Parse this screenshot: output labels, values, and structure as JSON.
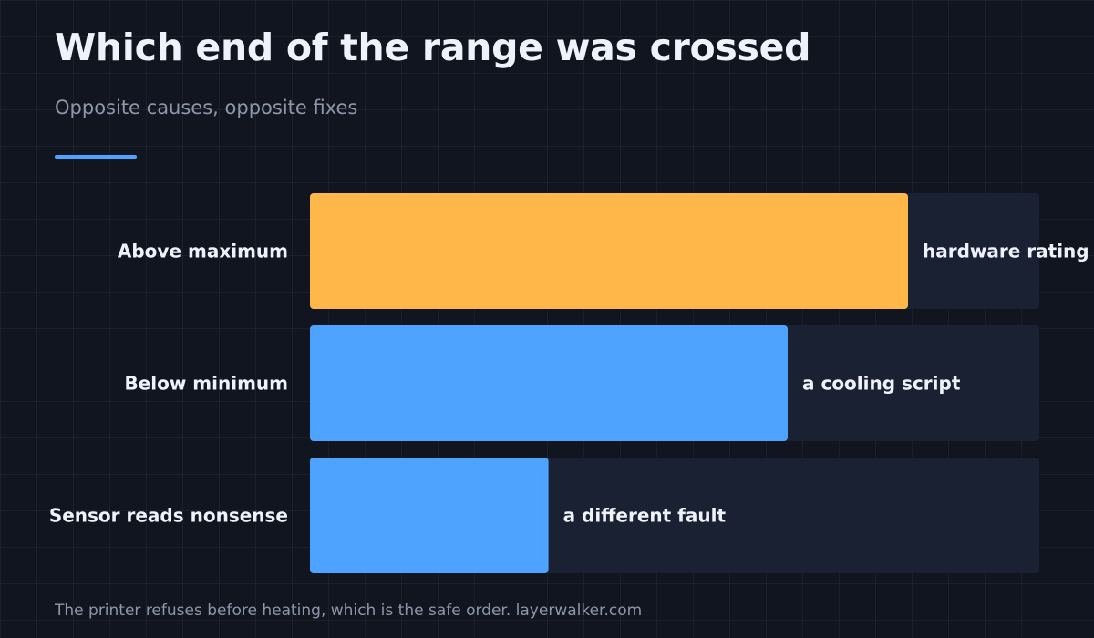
{
  "header": {
    "title": "Which end of the range was crossed",
    "subtitle": "Opposite causes, opposite fixes"
  },
  "footer": {
    "source": "The printer refuses before heating, which is the safe order. layerwalker.com"
  },
  "colors": {
    "background": "#11151f",
    "track": "#1a2132",
    "accent": "#4da3ff",
    "highlight": "#ffb74a",
    "text": "#eef2fb",
    "muted": "#8d97aa"
  },
  "chart_data": {
    "type": "bar",
    "orientation": "horizontal",
    "title": "Which end of the range was crossed",
    "subtitle": "Opposite causes, opposite fixes",
    "xlim": [
      0,
      100
    ],
    "grid": true,
    "legend": "none",
    "categories": [
      "Above maximum",
      "Below minimum",
      "Sensor reads nonsense"
    ],
    "values": [
      82,
      65.5,
      32.7
    ],
    "bar_labels": [
      "hardware rating",
      "a cooling script",
      "a different fault"
    ],
    "bar_colors": [
      "#ffb74a",
      "#4da3ff",
      "#4da3ff"
    ]
  }
}
